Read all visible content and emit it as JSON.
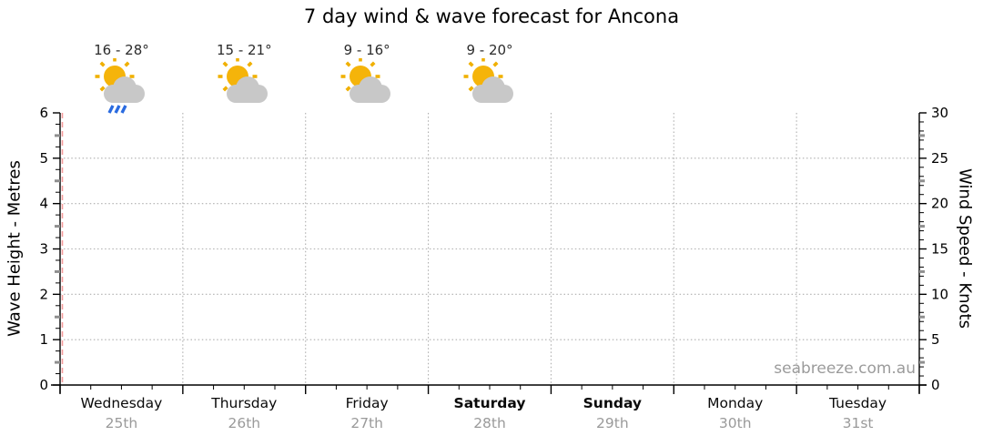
{
  "title": "7 day wind & wave forecast for Ancona",
  "watermark": "seabreeze.com.au",
  "colors": {
    "axis": "#000000",
    "grid": "#aeaeae",
    "day_boundary": "#aeaeae",
    "now_line": "#f59c9c",
    "medium_tick": "#8f8f8f",
    "sun": "#f5b40a",
    "ray": "#f0b000",
    "cloud": "#c8c8c8",
    "rain": "#2a6be0",
    "date_text": "#9a9a9a",
    "watermark_text": "#9b9b9b"
  },
  "chart_data": {
    "type": "line",
    "title": "7 day wind & wave forecast for Ancona",
    "series": [],
    "grid": "dotted horizontal lines at each metre, dotted vertical lines at day boundaries, dashed red current-time line at left edge",
    "legend": "none",
    "left_axis": {
      "label": "Wave Height - Metres",
      "min": 0,
      "max": 6,
      "major_step": 1,
      "medium_step": 0.5,
      "minor_step": 0.25,
      "tick_labels": [
        "0",
        "1",
        "2",
        "3",
        "4",
        "5",
        "6"
      ]
    },
    "right_axis": {
      "label": "Wind Speed - Knots",
      "min": 0,
      "max": 30,
      "major_step": 5,
      "medium_step": 2.5,
      "minor_step": 1,
      "tick_labels": [
        "0",
        "5",
        "10",
        "15",
        "20",
        "25",
        "30"
      ]
    },
    "x_axis": {
      "minor_divisions_per_day": 4,
      "days": [
        {
          "name": "Wednesday",
          "date": "25th",
          "weekend": false
        },
        {
          "name": "Thursday",
          "date": "26th",
          "weekend": false
        },
        {
          "name": "Friday",
          "date": "27th",
          "weekend": false
        },
        {
          "name": "Saturday",
          "date": "28th",
          "weekend": true
        },
        {
          "name": "Sunday",
          "date": "29th",
          "weekend": true
        },
        {
          "name": "Monday",
          "date": "30th",
          "weekend": false
        },
        {
          "name": "Tuesday",
          "date": "31st",
          "weekend": false
        }
      ]
    },
    "forecasts": [
      {
        "day": "Wednesday",
        "temp_range": "16 - 28°",
        "condition": "partly-cloudy-rain"
      },
      {
        "day": "Thursday",
        "temp_range": "15 - 21°",
        "condition": "partly-cloudy"
      },
      {
        "day": "Friday",
        "temp_range": "9 - 16°",
        "condition": "partly-cloudy"
      },
      {
        "day": "Saturday",
        "temp_range": "9 - 20°",
        "condition": "partly-cloudy"
      }
    ]
  }
}
